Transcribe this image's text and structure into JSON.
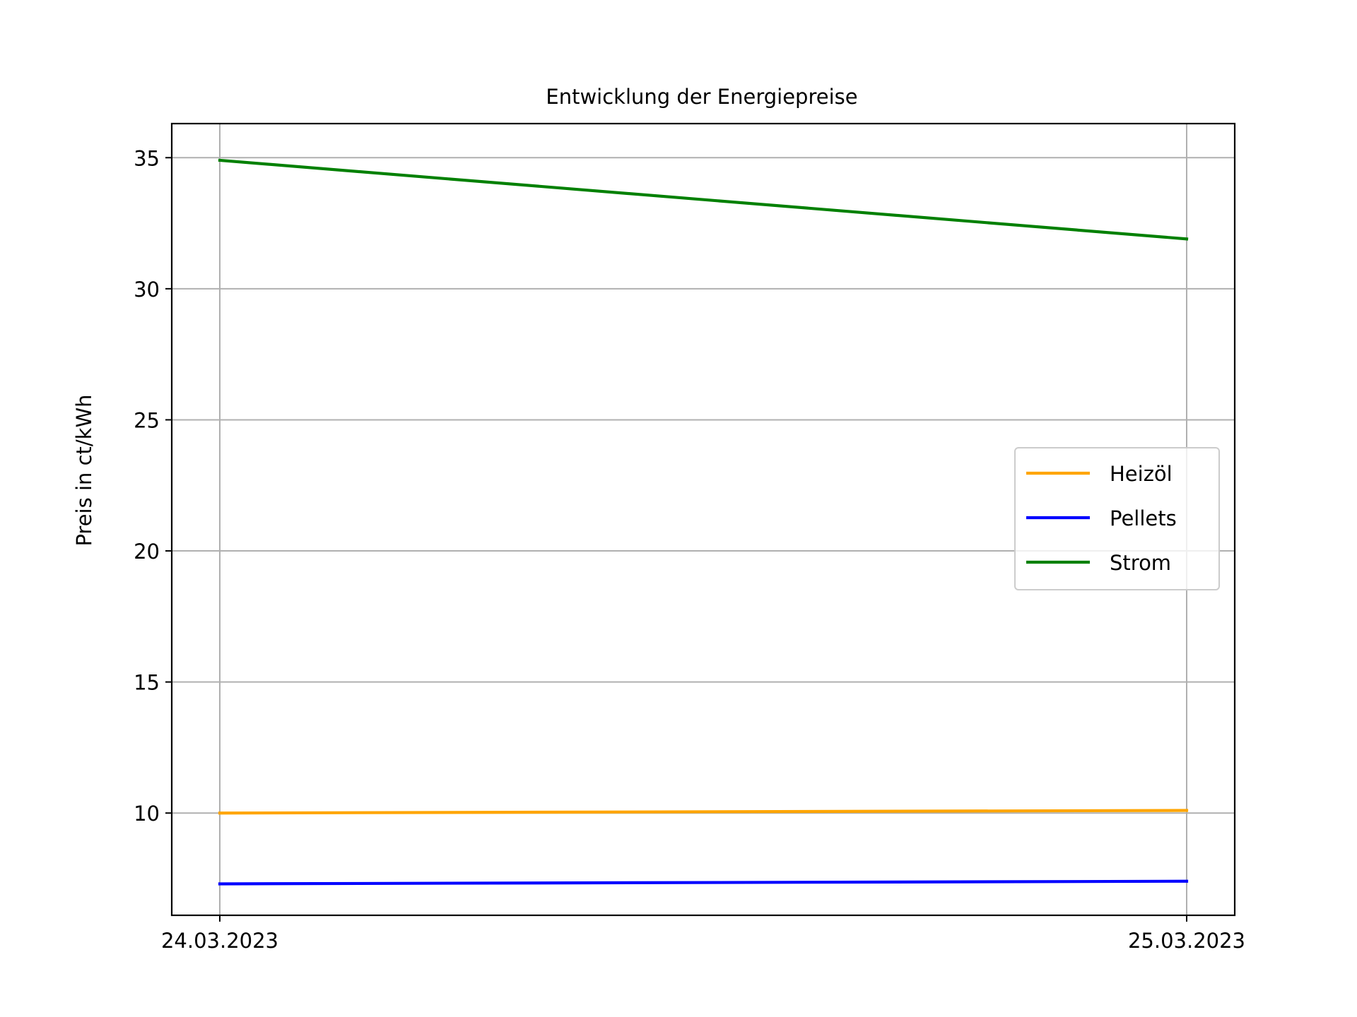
{
  "chart_data": {
    "type": "line",
    "title": "Entwicklung der Energiepreise",
    "xlabel": "",
    "ylabel": "Preis in ct/kWh",
    "x": [
      "24.03.2023",
      "25.03.2023"
    ],
    "x_tick_labels": [
      "24.03.2023",
      "25.03.2023"
    ],
    "ylim": [
      6.1,
      36.3
    ],
    "y_ticks": [
      10,
      15,
      20,
      25,
      30,
      35
    ],
    "y_tick_labels": [
      "10",
      "15",
      "20",
      "25",
      "30",
      "35"
    ],
    "grid": true,
    "legend_position": "center-right",
    "series": [
      {
        "name": "Heizöl",
        "color": "#ffa500",
        "values": [
          10.0,
          10.1
        ]
      },
      {
        "name": "Pellets",
        "color": "#0000ff",
        "values": [
          7.3,
          7.4
        ]
      },
      {
        "name": "Strom",
        "color": "#008000",
        "values": [
          34.9,
          31.9
        ]
      }
    ]
  }
}
